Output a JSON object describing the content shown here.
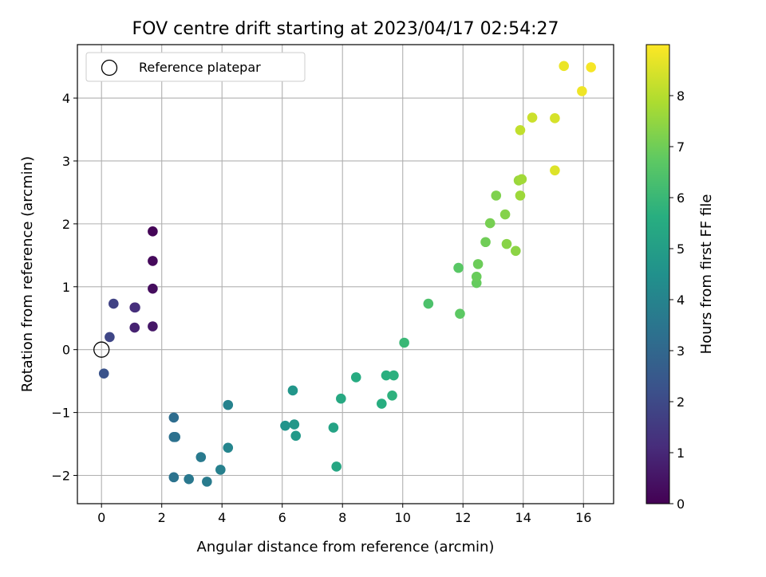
{
  "chart_data": {
    "type": "scatter",
    "title": "FOV centre drift starting at 2023/04/17 02:54:27",
    "xlabel": "Angular distance from reference (arcmin)",
    "ylabel": "Rotation from reference (arcmin)",
    "colorbar_label": "Hours from first FF file",
    "xlim": [
      -0.8,
      17.0
    ],
    "ylim": [
      -2.45,
      4.85
    ],
    "xticks": [
      0,
      2,
      4,
      6,
      8,
      10,
      12,
      14,
      16
    ],
    "yticks": [
      -2,
      -1,
      0,
      1,
      2,
      3,
      4
    ],
    "colorbar_range": [
      0,
      9
    ],
    "colorbar_ticks": [
      0,
      1,
      2,
      3,
      4,
      5,
      6,
      7,
      8
    ],
    "colormap": "viridis",
    "grid": true,
    "legend": {
      "placement": "top-left",
      "entries": [
        {
          "label": "Reference platepar",
          "marker": "open-circle"
        }
      ]
    },
    "reference_point": {
      "x": 0,
      "y": 0
    },
    "points": [
      {
        "x": 1.7,
        "y": 1.88,
        "hours": 0.1
      },
      {
        "x": 1.7,
        "y": 1.41,
        "hours": 0.2
      },
      {
        "x": 1.7,
        "y": 0.97,
        "hours": 0.3
      },
      {
        "x": 1.7,
        "y": 0.37,
        "hours": 0.55
      },
      {
        "x": 1.1,
        "y": 0.35,
        "hours": 0.85
      },
      {
        "x": 1.1,
        "y": 0.67,
        "hours": 1.0
      },
      {
        "x": 1.12,
        "y": 0.67,
        "hours": 1.2
      },
      {
        "x": 0.4,
        "y": 0.73,
        "hours": 1.75
      },
      {
        "x": 0.27,
        "y": 0.2,
        "hours": 1.9
      },
      {
        "x": 0.08,
        "y": -0.38,
        "hours": 2.3
      },
      {
        "x": 2.4,
        "y": -1.08,
        "hours": 3.2
      },
      {
        "x": 2.4,
        "y": -1.39,
        "hours": 3.3
      },
      {
        "x": 2.45,
        "y": -1.39,
        "hours": 3.35
      },
      {
        "x": 2.4,
        "y": -2.03,
        "hours": 3.4
      },
      {
        "x": 2.9,
        "y": -2.06,
        "hours": 3.6
      },
      {
        "x": 3.3,
        "y": -1.71,
        "hours": 3.65
      },
      {
        "x": 3.5,
        "y": -2.1,
        "hours": 3.7
      },
      {
        "x": 3.95,
        "y": -1.91,
        "hours": 3.9
      },
      {
        "x": 4.2,
        "y": -0.88,
        "hours": 3.95
      },
      {
        "x": 4.2,
        "y": -1.56,
        "hours": 4.05
      },
      {
        "x": 6.1,
        "y": -1.21,
        "hours": 4.6
      },
      {
        "x": 6.35,
        "y": -0.65,
        "hours": 4.7
      },
      {
        "x": 6.4,
        "y": -1.19,
        "hours": 4.75
      },
      {
        "x": 6.45,
        "y": -1.37,
        "hours": 4.8
      },
      {
        "x": 7.7,
        "y": -1.24,
        "hours": 5.2
      },
      {
        "x": 7.8,
        "y": -1.86,
        "hours": 5.3
      },
      {
        "x": 7.95,
        "y": -0.78,
        "hours": 5.4
      },
      {
        "x": 8.45,
        "y": -0.44,
        "hours": 5.5
      },
      {
        "x": 9.3,
        "y": -0.86,
        "hours": 5.6
      },
      {
        "x": 9.45,
        "y": -0.41,
        "hours": 5.65
      },
      {
        "x": 9.7,
        "y": -0.41,
        "hours": 5.7
      },
      {
        "x": 9.65,
        "y": -0.73,
        "hours": 5.75
      },
      {
        "x": 10.05,
        "y": 0.11,
        "hours": 6.0
      },
      {
        "x": 10.85,
        "y": 0.73,
        "hours": 6.4
      },
      {
        "x": 11.85,
        "y": 1.3,
        "hours": 6.65
      },
      {
        "x": 11.9,
        "y": 0.57,
        "hours": 6.7
      },
      {
        "x": 12.45,
        "y": 1.06,
        "hours": 6.85
      },
      {
        "x": 12.45,
        "y": 1.16,
        "hours": 6.9
      },
      {
        "x": 12.5,
        "y": 1.36,
        "hours": 6.95
      },
      {
        "x": 12.75,
        "y": 1.71,
        "hours": 7.0
      },
      {
        "x": 12.9,
        "y": 2.01,
        "hours": 7.1
      },
      {
        "x": 13.1,
        "y": 2.45,
        "hours": 7.2
      },
      {
        "x": 13.4,
        "y": 2.15,
        "hours": 7.3
      },
      {
        "x": 13.45,
        "y": 1.68,
        "hours": 7.35
      },
      {
        "x": 13.75,
        "y": 1.57,
        "hours": 7.4
      },
      {
        "x": 13.85,
        "y": 2.69,
        "hours": 7.6
      },
      {
        "x": 13.9,
        "y": 2.45,
        "hours": 7.65
      },
      {
        "x": 13.95,
        "y": 2.71,
        "hours": 7.7
      },
      {
        "x": 13.9,
        "y": 3.49,
        "hours": 8.15
      },
      {
        "x": 14.3,
        "y": 3.69,
        "hours": 8.3
      },
      {
        "x": 15.05,
        "y": 3.68,
        "hours": 8.45
      },
      {
        "x": 15.05,
        "y": 2.85,
        "hours": 8.55
      },
      {
        "x": 15.35,
        "y": 4.51,
        "hours": 8.75
      },
      {
        "x": 15.95,
        "y": 4.11,
        "hours": 8.8
      },
      {
        "x": 16.25,
        "y": 4.49,
        "hours": 8.9
      }
    ]
  }
}
